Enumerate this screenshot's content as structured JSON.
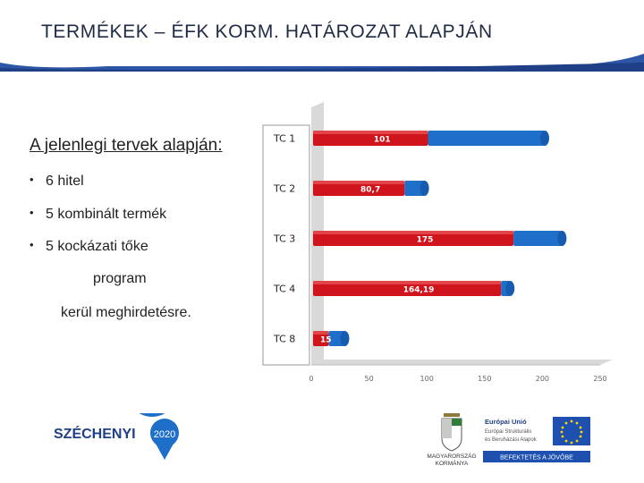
{
  "header": {
    "title": "TERMÉKEK – ÉFK KORM. HATÁROZAT ALAPJÁN"
  },
  "left": {
    "intro": "A jelenlegi tervek alapján:",
    "bullets": [
      "6 hitel",
      "5 kombinált termék",
      "5 kockázati tőke"
    ],
    "continuation_1": "program",
    "continuation_2": "kerül meghirdetésre.",
    "bullet_char": "•"
  },
  "chart_data": {
    "type": "bar",
    "orientation": "horizontal",
    "categories": [
      "TC 1",
      "TC 2",
      "TC 3",
      "TC 4",
      "TC 8"
    ],
    "values": [
      101,
      80.7,
      175,
      164.19,
      15
    ],
    "data_labels": [
      "101",
      "80,7",
      "175",
      "164,19",
      "15"
    ],
    "total_values": [
      202,
      98,
      217,
      172,
      29
    ],
    "xlim": [
      0,
      250
    ],
    "x_ticks": [
      "0",
      "50",
      "100",
      "150",
      "200",
      "250"
    ],
    "colors": {
      "primary": "#d0141c",
      "remainder": "#1e6fc9"
    },
    "grid": false,
    "style": "3d"
  },
  "logos": {
    "szechenyi_text": "SZÉCHENYI",
    "szechenyi_year": "2020",
    "gov_line1": "MAGYARORSZÁG",
    "gov_line2": "KORMÁNYA",
    "eu_title": "Európai Unió",
    "eu_line1": "Európai Strukturális",
    "eu_line2": "és Beruházási Alapok",
    "eu_footer": "BEFEKTETÉS A JÖVŐBE"
  }
}
